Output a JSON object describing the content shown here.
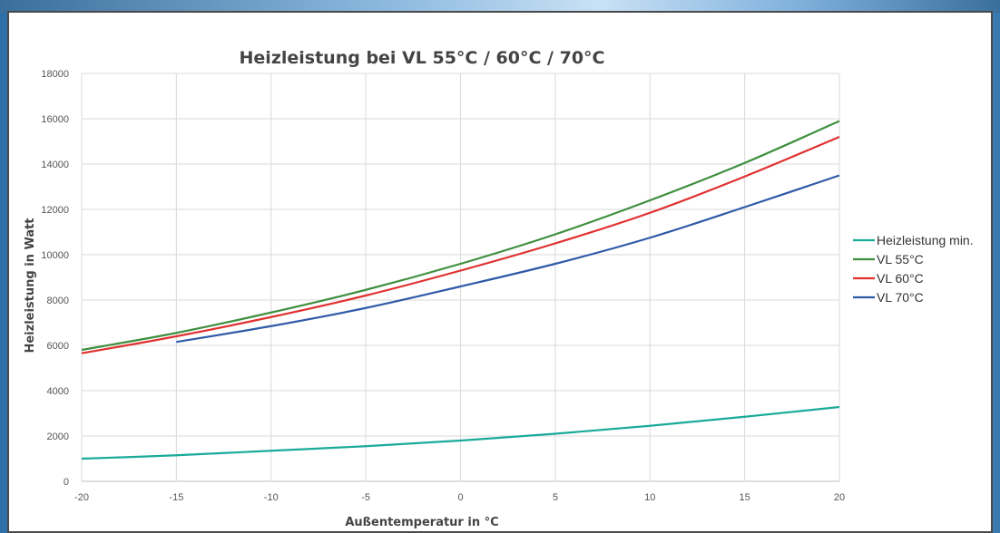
{
  "chart_data": {
    "type": "line",
    "title": "Heizleistung bei VL 55°C / 60°C / 70°C",
    "xlabel": "Außentemperatur in °C",
    "ylabel": "Heizleistung in Watt",
    "xlim": [
      -20,
      20
    ],
    "ylim": [
      0,
      18000
    ],
    "x_ticks": [
      -20,
      -15,
      -10,
      -5,
      0,
      5,
      10,
      15,
      20
    ],
    "y_ticks": [
      0,
      2000,
      4000,
      6000,
      8000,
      10000,
      12000,
      14000,
      16000,
      18000
    ],
    "grid": true,
    "legend_position": "right",
    "series": [
      {
        "name": "Heizleistung min.",
        "color": "#1aaa9a",
        "x": [
          -20,
          -15,
          -10,
          -5,
          0,
          5,
          10,
          15,
          20
        ],
        "y": [
          1000,
          1150,
          1350,
          1550,
          1800,
          2100,
          2450,
          2850,
          3280
        ]
      },
      {
        "name": "VL 55°C",
        "color": "#3f8f3f",
        "x": [
          -20,
          -15,
          -10,
          -5,
          0,
          5,
          10,
          15,
          20
        ],
        "y": [
          5800,
          6550,
          7450,
          8450,
          9600,
          10900,
          12400,
          14050,
          15900
        ]
      },
      {
        "name": "VL 60°C",
        "color": "#e03030",
        "x": [
          -20,
          -15,
          -10,
          -5,
          0,
          5,
          10,
          15,
          20
        ],
        "y": [
          5650,
          6400,
          7250,
          8200,
          9300,
          10500,
          11850,
          13450,
          15200
        ]
      },
      {
        "name": "VL 70°C",
        "color": "#2f5aa8",
        "x": [
          -15,
          -10,
          -5,
          0,
          5,
          10,
          15,
          20
        ],
        "y": [
          6150,
          6850,
          7650,
          8600,
          9600,
          10750,
          12100,
          13500
        ]
      }
    ]
  }
}
